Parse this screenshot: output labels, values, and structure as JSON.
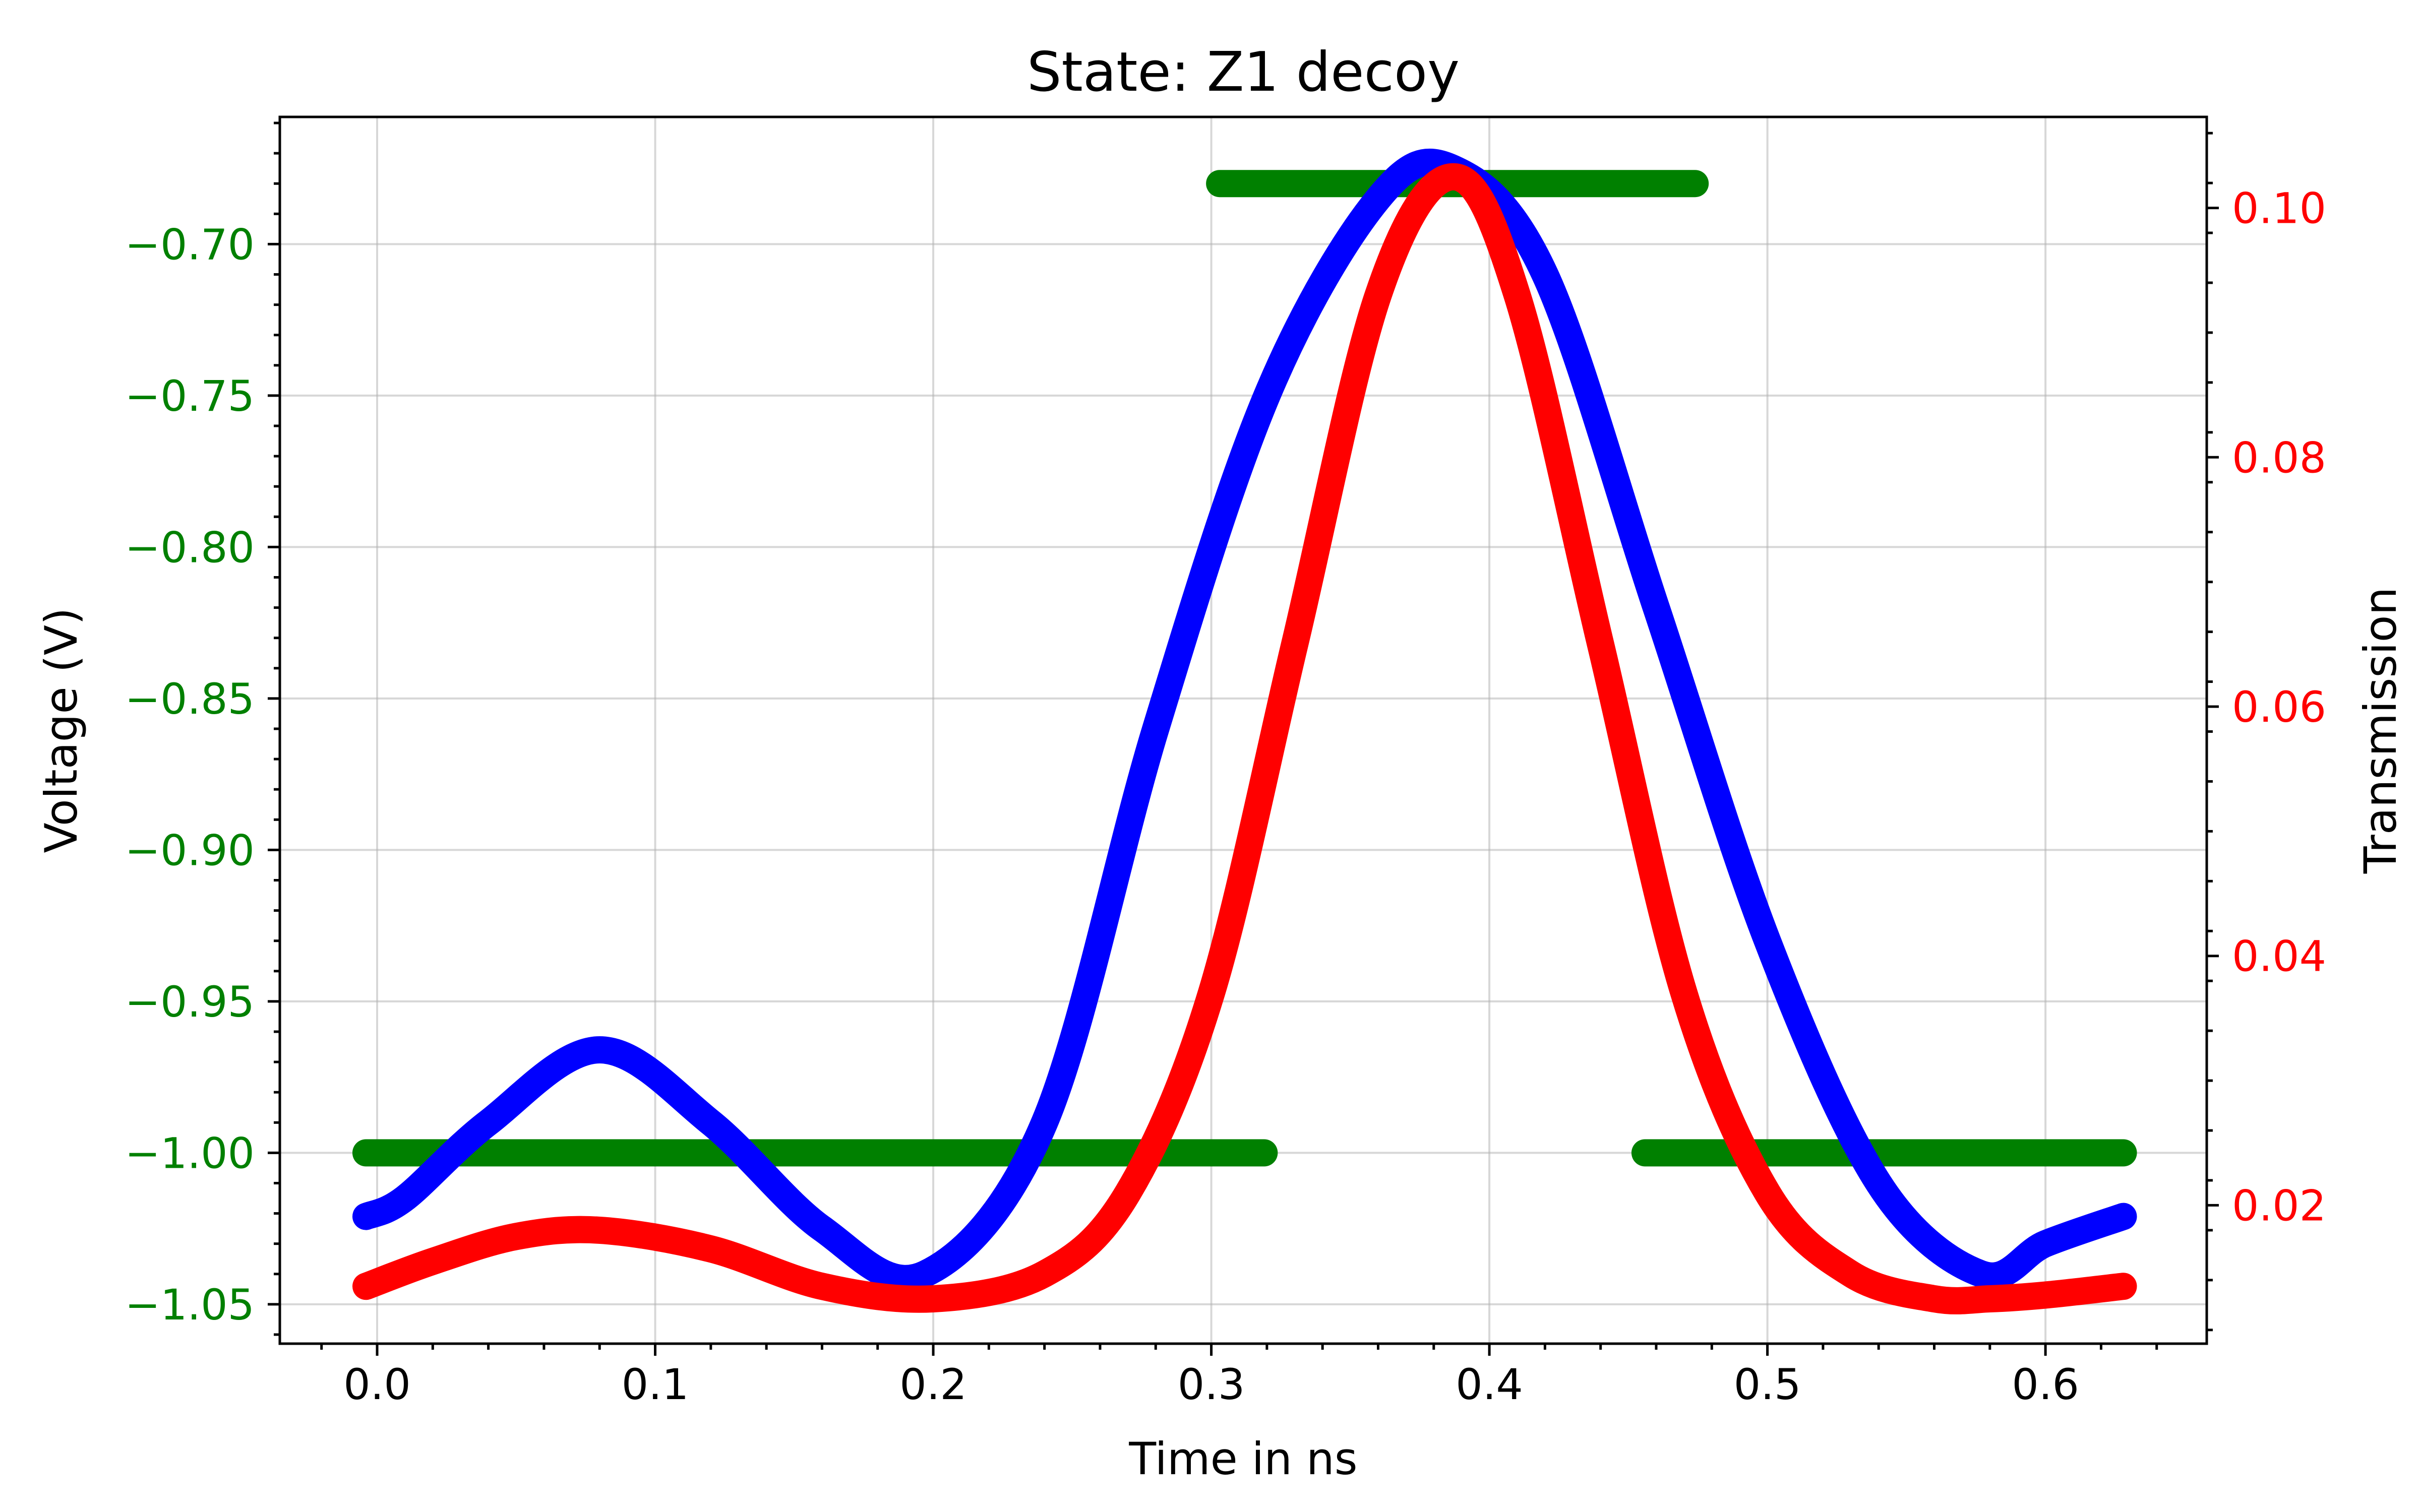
{
  "chart_data": {
    "type": "line",
    "title": "State: Z1 decoy",
    "xlabel": "Time in ns",
    "ylabel_left": "Voltage (V)",
    "ylabel_right": "Transmission",
    "xlim": [
      -0.035,
      0.658
    ],
    "ylim_left": [
      -1.063,
      -0.658
    ],
    "ylim_right": [
      0.0089,
      0.1073
    ],
    "grid": true,
    "x_ticks": [
      "0.0",
      "0.1",
      "0.2",
      "0.3",
      "0.4",
      "0.5",
      "0.6"
    ],
    "y_left_ticks": [
      "−1.05",
      "−1.00",
      "−0.95",
      "−0.90",
      "−0.85",
      "−0.80",
      "−0.75",
      "−0.70"
    ],
    "y_right_ticks": [
      "0.02",
      "0.04",
      "0.06",
      "0.08",
      "0.10"
    ],
    "colors": {
      "voltage": "#008000",
      "waveform": "#0000ff",
      "transmission": "#ff0000",
      "left_axis": "#008000",
      "right_axis": "#ff0000"
    },
    "series": [
      {
        "axis": "left",
        "color": "#008000",
        "segments": [
          {
            "x": [
              -0.004,
              0.319
            ],
            "y": [
              -1.0,
              -1.0
            ]
          },
          {
            "x": [
              0.303,
              0.474
            ],
            "y": [
              -0.68,
              -0.68
            ]
          },
          {
            "x": [
              0.456,
              0.628
            ],
            "y": [
              -1.0,
              -1.0
            ]
          }
        ]
      },
      {
        "axis": "left",
        "color": "#0000ff",
        "x": [
          -0.004,
          0.01,
          0.04,
          0.08,
          0.12,
          0.16,
          0.197,
          0.24,
          0.28,
          0.32,
          0.36,
          0.387,
          0.42,
          0.46,
          0.5,
          0.54,
          0.577,
          0.6,
          0.628
        ],
        "y": [
          -1.021,
          -1.015,
          -0.99,
          -0.966,
          -0.99,
          -1.025,
          -1.04,
          -0.99,
          -0.86,
          -0.75,
          -0.685,
          -0.675,
          -0.71,
          -0.82,
          -0.93,
          -1.01,
          -1.04,
          -1.03,
          -1.021
        ]
      },
      {
        "axis": "right",
        "color": "#ff0000",
        "x": [
          -0.004,
          0.02,
          0.05,
          0.08,
          0.12,
          0.16,
          0.2,
          0.24,
          0.27,
          0.3,
          0.33,
          0.36,
          0.387,
          0.41,
          0.44,
          0.47,
          0.5,
          0.53,
          0.56,
          0.58,
          0.6,
          0.628
        ],
        "y": [
          0.0135,
          0.0155,
          0.0175,
          0.018,
          0.0165,
          0.0135,
          0.0125,
          0.0145,
          0.021,
          0.037,
          0.065,
          0.093,
          0.1025,
          0.093,
          0.065,
          0.037,
          0.021,
          0.0145,
          0.0125,
          0.0125,
          0.0128,
          0.0135
        ]
      }
    ]
  }
}
